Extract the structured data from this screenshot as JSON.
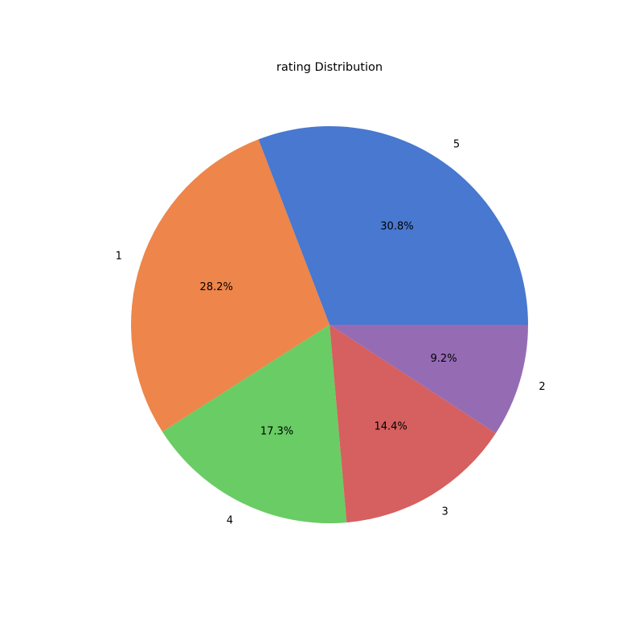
{
  "chart_data": {
    "type": "pie",
    "title": "rating Distribution",
    "categories": [
      "5",
      "1",
      "4",
      "3",
      "2"
    ],
    "values": [
      30.8,
      28.2,
      17.3,
      14.4,
      9.2
    ],
    "value_labels": [
      "30.8%",
      "28.2%",
      "17.3%",
      "14.4%",
      "9.2%"
    ],
    "colors": [
      "#4878cf",
      "#ee854a",
      "#6acc64",
      "#d65f5f",
      "#956cb4"
    ],
    "start_angle_deg": 0,
    "direction": "counterclockwise"
  }
}
